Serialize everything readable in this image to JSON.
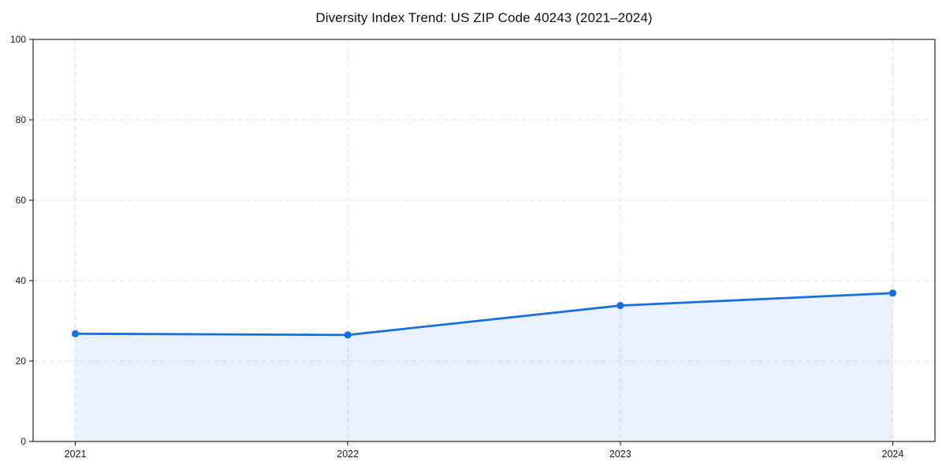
{
  "chart_data": {
    "type": "area",
    "title": "Diversity Index Trend: US ZIP Code 40243 (2021–2024)",
    "x": [
      2021,
      2022,
      2023,
      2024
    ],
    "series": [
      {
        "name": "Diversity Index",
        "values": [
          26.8,
          26.5,
          33.8,
          36.9
        ]
      }
    ],
    "xlabel": "",
    "ylabel": "",
    "xlim": [
      2020.845,
      2024.155
    ],
    "ylim": [
      0,
      100
    ],
    "xticks": [
      2021,
      2022,
      2023,
      2024
    ],
    "yticks": [
      0,
      20,
      40,
      60,
      80,
      100
    ],
    "grid": true,
    "grid_style": "dashed",
    "legend": false,
    "colors": {
      "line": "#1a6fdf",
      "marker": "#1a6fdf",
      "fill": "rgba(26,115,232,0.10)",
      "grid": "#e0e0e0",
      "axis": "#000000",
      "tick_text": "#1a1a1a"
    }
  }
}
